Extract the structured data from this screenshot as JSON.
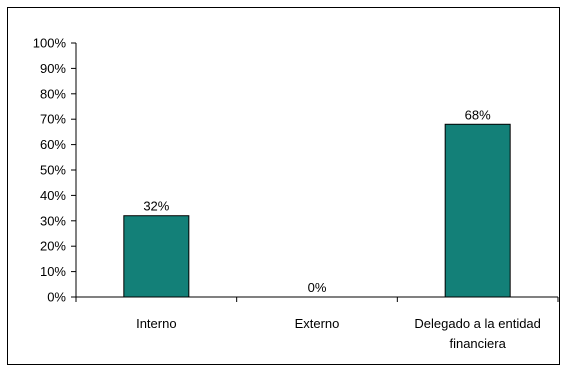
{
  "chart_data": {
    "type": "bar",
    "title": "",
    "xlabel": "",
    "ylabel": "",
    "categories": [
      [
        "Interno"
      ],
      [
        "Externo"
      ],
      [
        "Delegado a la entidad",
        "financiera"
      ]
    ],
    "values": [
      32,
      0,
      68
    ],
    "value_labels": [
      "32%",
      "0%",
      "68%"
    ],
    "ylim": [
      0,
      100
    ],
    "yticks": [
      0,
      10,
      20,
      30,
      40,
      50,
      60,
      70,
      80,
      90,
      100
    ],
    "ytick_labels": [
      "0%",
      "10%",
      "20%",
      "30%",
      "40%",
      "50%",
      "60%",
      "70%",
      "80%",
      "90%",
      "100%"
    ],
    "grid": false,
    "legend": "none",
    "bar_color": "#138078",
    "bar_edge_color": "#000000"
  }
}
